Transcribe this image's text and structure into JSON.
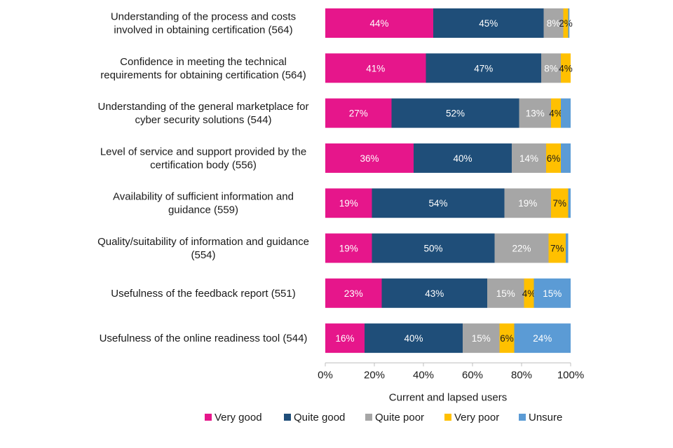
{
  "chart_data": {
    "type": "bar",
    "orientation": "horizontal",
    "stacked": true,
    "categories": [
      [
        "Understanding of the process and costs",
        "involved in obtaining certification (564)"
      ],
      [
        "Confidence in meeting the technical",
        "requirements for obtaining certification (564)"
      ],
      [
        "Understanding of the general marketplace for",
        "cyber security solutions (544)"
      ],
      [
        "Level of service and support provided by the",
        "certification body (556)"
      ],
      [
        "Availability of sufficient information and",
        "guidance (559)"
      ],
      [
        "Quality/suitability of information and guidance",
        "(554)"
      ],
      [
        "Usefulness of the feedback report (551)"
      ],
      [
        "Usefulness of the online readiness tool (544)"
      ]
    ],
    "series": [
      {
        "name": "Very good",
        "color": "#e6168b",
        "label_color": "#ffffff",
        "values": [
          44,
          41,
          27,
          36,
          19,
          19,
          23,
          16
        ]
      },
      {
        "name": "Quite good",
        "color": "#1f4e79",
        "label_color": "#ffffff",
        "values": [
          45,
          47,
          52,
          40,
          54,
          50,
          43,
          40
        ]
      },
      {
        "name": "Quite poor",
        "color": "#a6a6a6",
        "label_color": "#ffffff",
        "values": [
          8,
          8,
          13,
          14,
          19,
          22,
          15,
          15
        ]
      },
      {
        "name": "Very poor",
        "color": "#ffc000",
        "label_color": "#1a1a1a",
        "values": [
          2,
          4,
          4,
          6,
          7,
          7,
          4,
          6
        ]
      },
      {
        "name": "Unsure",
        "color": "#5b9bd5",
        "label_color": "#ffffff",
        "values": [
          0.5,
          0.5,
          4,
          4,
          1,
          1,
          15,
          24
        ]
      }
    ],
    "data_labels": [
      [
        "44%",
        "45%",
        "8%",
        "2%",
        ""
      ],
      [
        "41%",
        "47%",
        "8%",
        "4%",
        ""
      ],
      [
        "27%",
        "52%",
        "13%",
        "4%",
        ""
      ],
      [
        "36%",
        "40%",
        "14%",
        "6%",
        ""
      ],
      [
        "19%",
        "54%",
        "19%",
        "7%",
        ""
      ],
      [
        "19%",
        "50%",
        "22%",
        "7%",
        ""
      ],
      [
        "23%",
        "43%",
        "15%",
        "4%",
        "15%"
      ],
      [
        "16%",
        "40%",
        "15%",
        "6%",
        "24%"
      ]
    ],
    "xlabel": "Current and lapsed users",
    "xlim": [
      0,
      100
    ],
    "xticks": [
      "0%",
      "20%",
      "40%",
      "60%",
      "80%",
      "100%"
    ],
    "legend_position": "bottom",
    "grid": false
  }
}
